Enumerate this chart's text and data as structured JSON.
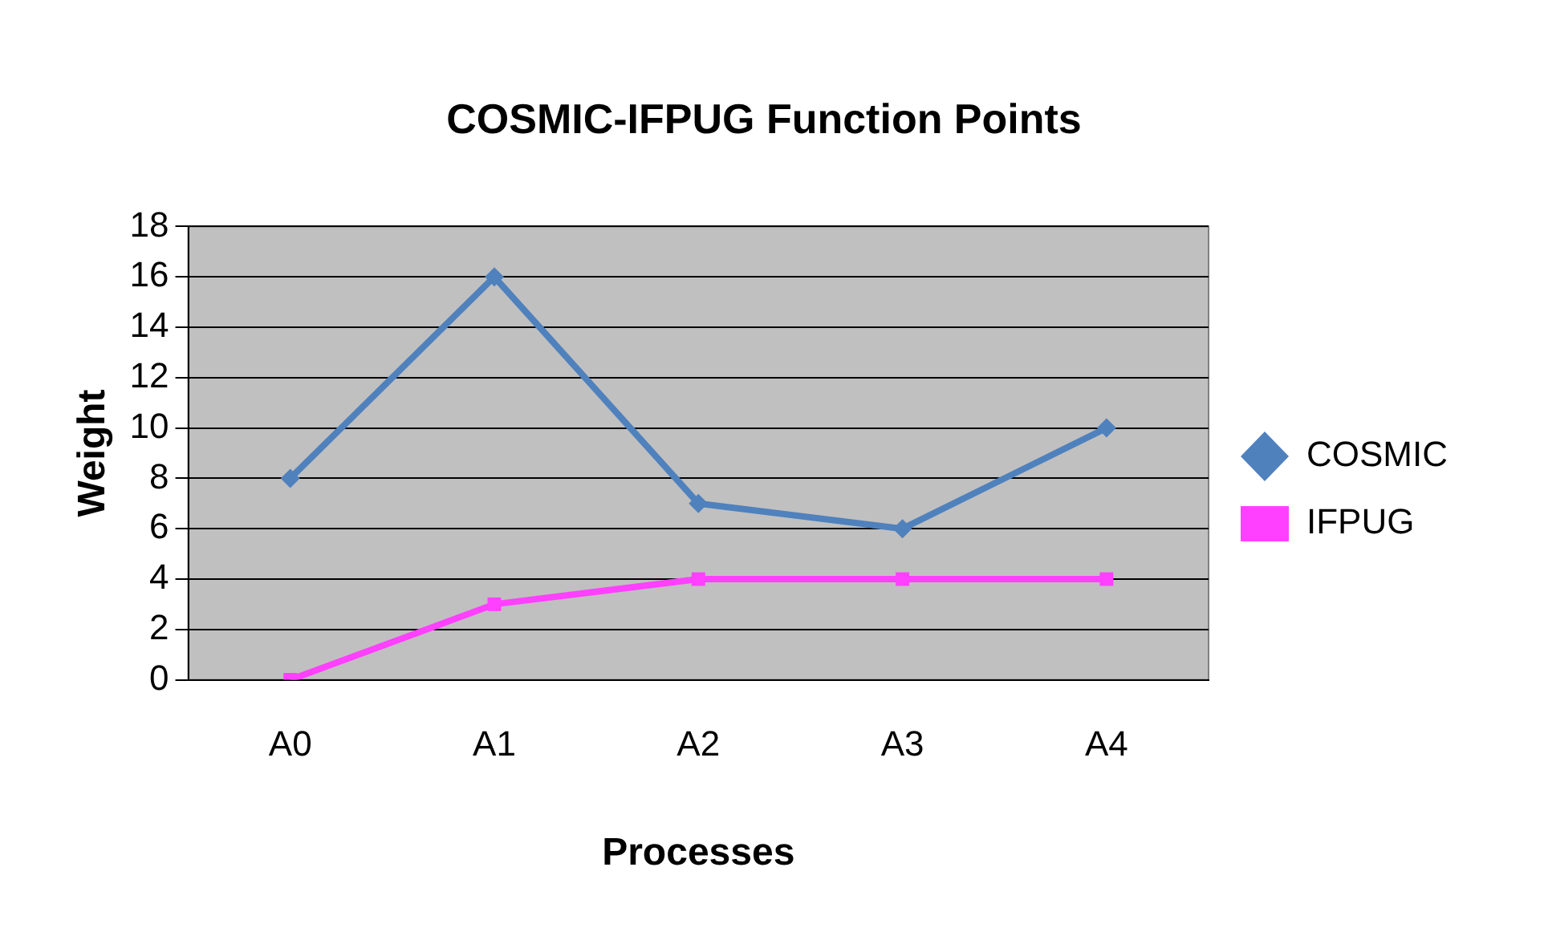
{
  "chart_data": {
    "type": "line",
    "title": "COSMIC-IFPUG Function Points",
    "xlabel": "Processes",
    "ylabel": "Weight",
    "categories": [
      "A0",
      "A1",
      "A2",
      "A3",
      "A4"
    ],
    "series": [
      {
        "name": "COSMIC",
        "color": "#4f81bd",
        "values": [
          8,
          16,
          7,
          6,
          10
        ],
        "marker": "diamond"
      },
      {
        "name": "IFPUG",
        "color": "#ff40ff",
        "values": [
          0,
          3,
          4,
          4,
          4
        ],
        "marker": "square"
      }
    ],
    "ylim": [
      0,
      18
    ],
    "yticks": [
      0,
      2,
      4,
      6,
      8,
      10,
      12,
      14,
      16,
      18
    ],
    "grid": "y",
    "legend": "right",
    "line_style": "solid"
  }
}
